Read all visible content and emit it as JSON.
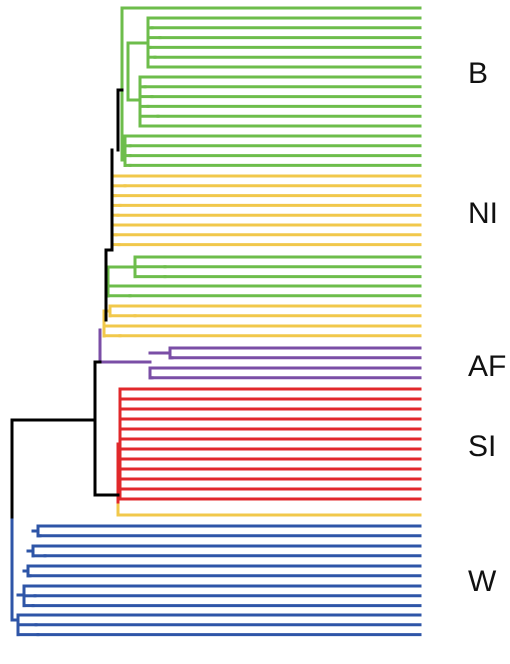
{
  "labels": [
    "B",
    "NI",
    "AF",
    "SI",
    "W"
  ]
}
